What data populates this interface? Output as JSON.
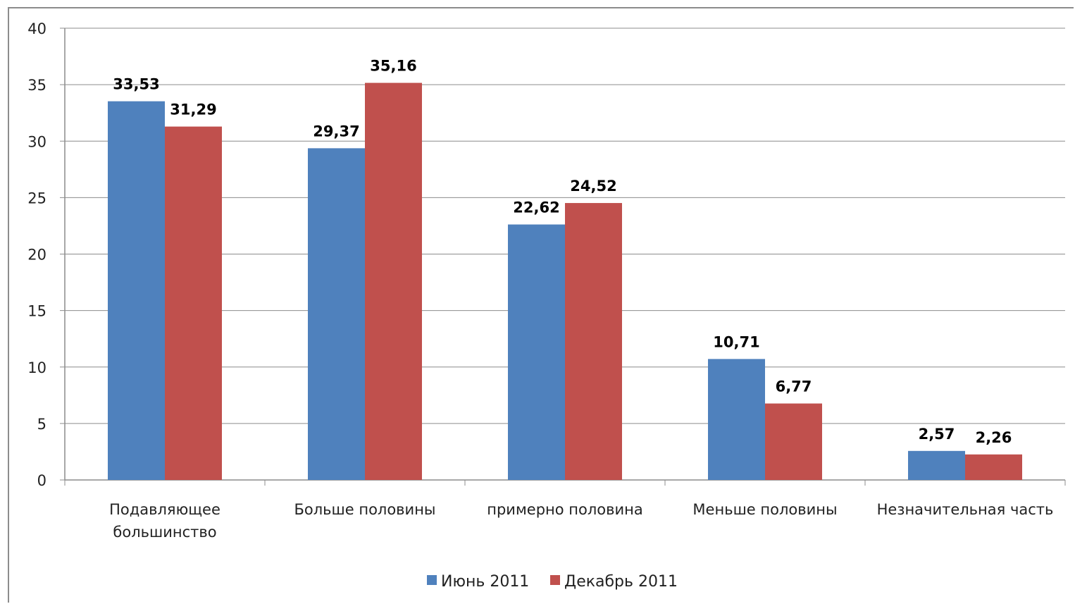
{
  "chart_data": {
    "type": "bar",
    "categories": [
      [
        "Подавляющее",
        "большинство"
      ],
      [
        "Больше половины"
      ],
      [
        "примерно половина"
      ],
      [
        "Меньше половины"
      ],
      [
        "Незначительная часть"
      ]
    ],
    "series": [
      {
        "name": "Июнь 2011",
        "color": "#4f81bd",
        "values": [
          33.53,
          29.37,
          22.62,
          10.71,
          2.57
        ],
        "labels": [
          "33,53",
          "29,37",
          "22,62",
          "10,71",
          "2,57"
        ]
      },
      {
        "name": "Декабрь 2011",
        "color": "#c0504d",
        "values": [
          31.29,
          35.16,
          24.52,
          6.77,
          2.26
        ],
        "labels": [
          "31,29",
          "35,16",
          "24,52",
          "6,77",
          "2,26"
        ]
      }
    ],
    "ylim": [
      0,
      40
    ],
    "yticks": [
      0,
      5,
      10,
      15,
      20,
      25,
      30,
      35,
      40
    ],
    "grid": true,
    "legend_position": "bottom"
  }
}
